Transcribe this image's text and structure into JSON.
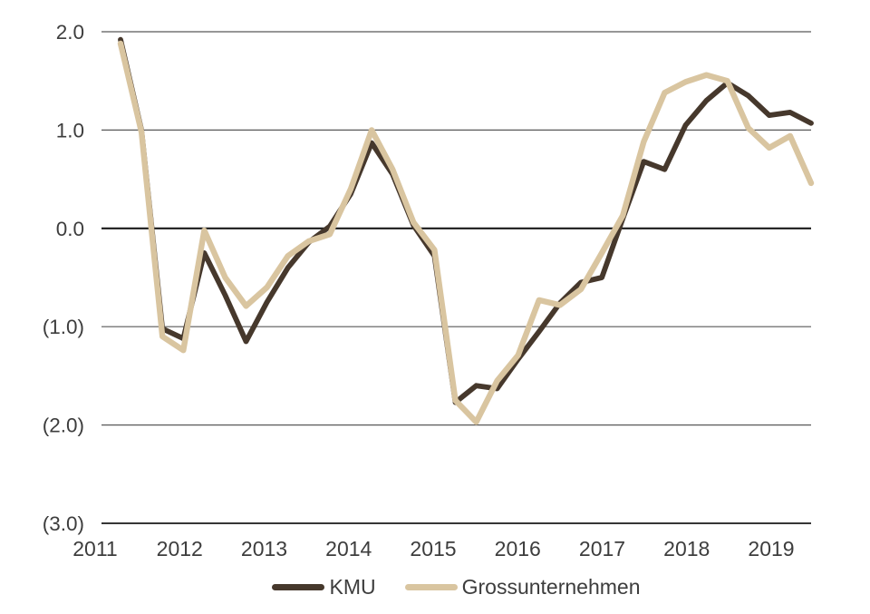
{
  "chart_data": {
    "type": "line",
    "title": "",
    "xlabel": "",
    "ylabel": "",
    "x_frequency": "quarterly (estimated from plot)",
    "x": [
      "2011 Q1",
      "2011 Q2",
      "2011 Q3",
      "2011 Q4",
      "2012 Q1",
      "2012 Q2",
      "2012 Q3",
      "2012 Q4",
      "2013 Q1",
      "2013 Q2",
      "2013 Q3",
      "2013 Q4",
      "2014 Q1",
      "2014 Q2",
      "2014 Q3",
      "2014 Q4",
      "2015 Q1",
      "2015 Q2",
      "2015 Q3",
      "2015 Q4",
      "2016 Q1",
      "2016 Q2",
      "2016 Q3",
      "2016 Q4",
      "2017 Q1",
      "2017 Q2",
      "2017 Q3",
      "2017 Q4",
      "2018 Q1",
      "2018 Q2",
      "2018 Q3",
      "2018 Q4",
      "2019 Q1",
      "2019 Q2"
    ],
    "x_axis_tick_labels": [
      "2011",
      "2012",
      "2013",
      "2014",
      "2015",
      "2016",
      "2017",
      "2018",
      "2019"
    ],
    "series": [
      {
        "name": "KMU",
        "color": "#46382c",
        "values": [
          1.92,
          1.0,
          -1.02,
          -1.12,
          -0.25,
          -0.68,
          -1.15,
          -0.75,
          -0.4,
          -0.14,
          0.02,
          0.35,
          0.87,
          0.55,
          0.03,
          -0.28,
          -1.77,
          -1.6,
          -1.63,
          -1.33,
          -1.05,
          -0.76,
          -0.55,
          -0.5,
          0.1,
          0.68,
          0.6,
          1.05,
          1.3,
          1.48,
          1.35,
          1.15,
          1.18,
          1.07
        ]
      },
      {
        "name": "Grossunternehmen",
        "color": "#d9c5a0",
        "values": [
          1.88,
          0.98,
          -1.1,
          -1.24,
          -0.02,
          -0.5,
          -0.79,
          -0.6,
          -0.28,
          -0.13,
          -0.06,
          0.4,
          1.0,
          0.6,
          0.06,
          -0.22,
          -1.75,
          -1.97,
          -1.55,
          -1.29,
          -0.73,
          -0.78,
          -0.62,
          -0.25,
          0.13,
          0.88,
          1.38,
          1.49,
          1.56,
          1.5,
          1.02,
          0.82,
          0.94,
          0.46
        ]
      }
    ],
    "y_ticks": [
      {
        "value": 2,
        "label": "2.0"
      },
      {
        "value": 1,
        "label": "1.0"
      },
      {
        "value": 0,
        "label": "0.0"
      },
      {
        "value": -1,
        "label": "(1.0)"
      },
      {
        "value": -2,
        "label": "(2.0)"
      },
      {
        "value": -3,
        "label": "(3.0)"
      }
    ],
    "ylim": [
      -3,
      2
    ],
    "negative_number_format": "parentheses",
    "grid": "horizontal",
    "legend_position": "bottom",
    "colors": {
      "grid_line": "#595959",
      "zero_line": "#1a1a1a",
      "bottom_line": "#1a1a1a",
      "tick_text": "#3d3d3d"
    }
  }
}
